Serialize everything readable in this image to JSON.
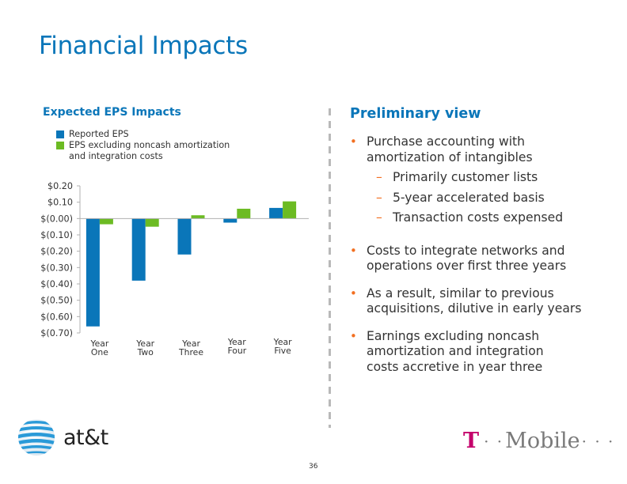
{
  "slide": {
    "title": "Financial Impacts",
    "page_number": "36"
  },
  "left_panel": {
    "heading": "Expected EPS Impacts",
    "legend": [
      {
        "label": "Reported EPS",
        "color": "#0a76b9"
      },
      {
        "label_line1": "EPS excluding noncash amortization",
        "label_line2": "and integration costs",
        "color": "#6cbb23"
      }
    ]
  },
  "chart_data": {
    "type": "bar",
    "title": "Expected EPS Impacts",
    "xlabel": "",
    "ylabel": "",
    "categories": [
      [
        "Year",
        "One"
      ],
      [
        "Year",
        "Two"
      ],
      [
        "Year",
        "Three"
      ],
      [
        "Year",
        "Four"
      ],
      [
        "Year",
        "Five"
      ]
    ],
    "series": [
      {
        "name": "Reported EPS",
        "color": "#0a76b9",
        "values": [
          -0.66,
          -0.38,
          -0.22,
          -0.025,
          0.065
        ]
      },
      {
        "name": "EPS excluding noncash amortization and integration costs",
        "color": "#6cbb23",
        "values": [
          -0.035,
          -0.05,
          0.02,
          0.06,
          0.105
        ]
      }
    ],
    "ylim": [
      -0.7,
      0.2
    ],
    "yticks": [
      0.2,
      0.1,
      0.0,
      -0.1,
      -0.2,
      -0.3,
      -0.4,
      -0.5,
      -0.6,
      -0.7
    ],
    "ytick_labels": [
      "$0.20",
      "$0.10",
      "$(0.00)",
      "$(0.10)",
      "$(0.20)",
      "$(0.30)",
      "$(0.40)",
      "$(0.50)",
      "$(0.60)",
      "$(0.70)"
    ],
    "grid": false,
    "legend_position": "top-left"
  },
  "right_panel": {
    "heading": "Preliminary view",
    "bullets": [
      {
        "line1": "Purchase accounting with",
        "line2": "amortization of intangibles",
        "subs": [
          "Primarily customer lists",
          "5-year accelerated basis",
          "Transaction costs expensed"
        ]
      },
      {
        "line1": "Costs to integrate networks and",
        "line2": "operations over first three years"
      },
      {
        "line1": "As a result, similar to previous",
        "line2": "acquisitions, dilutive in early years"
      },
      {
        "line1": "Earnings excluding noncash",
        "line2": "amortization and integration",
        "line3": "costs accretive in year three"
      }
    ],
    "bullet_glyph": "•",
    "sub_glyph": "–"
  },
  "logos": {
    "att": {
      "text": "at&t",
      "icon": "att-globe-icon"
    },
    "tmobile": {
      "t": "T",
      "dots_left": "· ·",
      "text": "Mobile",
      "dots_right": "· · ·",
      "magenta": "#c4006b"
    }
  }
}
